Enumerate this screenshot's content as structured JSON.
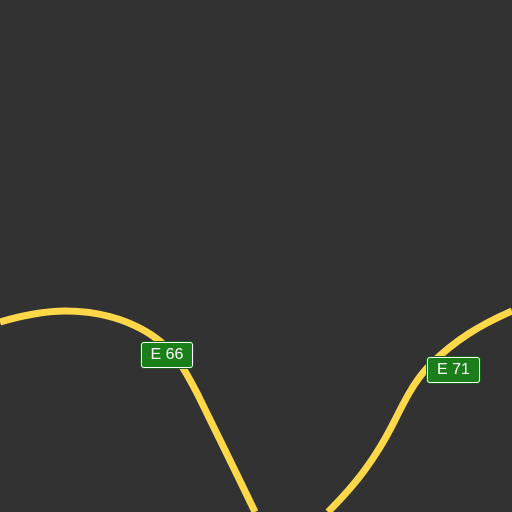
{
  "map": {
    "background_color": "#323232",
    "road_color": "#ffd84a",
    "road_edge_color": "#e6b93a",
    "shield_color": "#1a7f1a"
  },
  "routes": [
    {
      "id": "e66",
      "label": "E 66"
    },
    {
      "id": "e71",
      "label": "E 71"
    }
  ]
}
